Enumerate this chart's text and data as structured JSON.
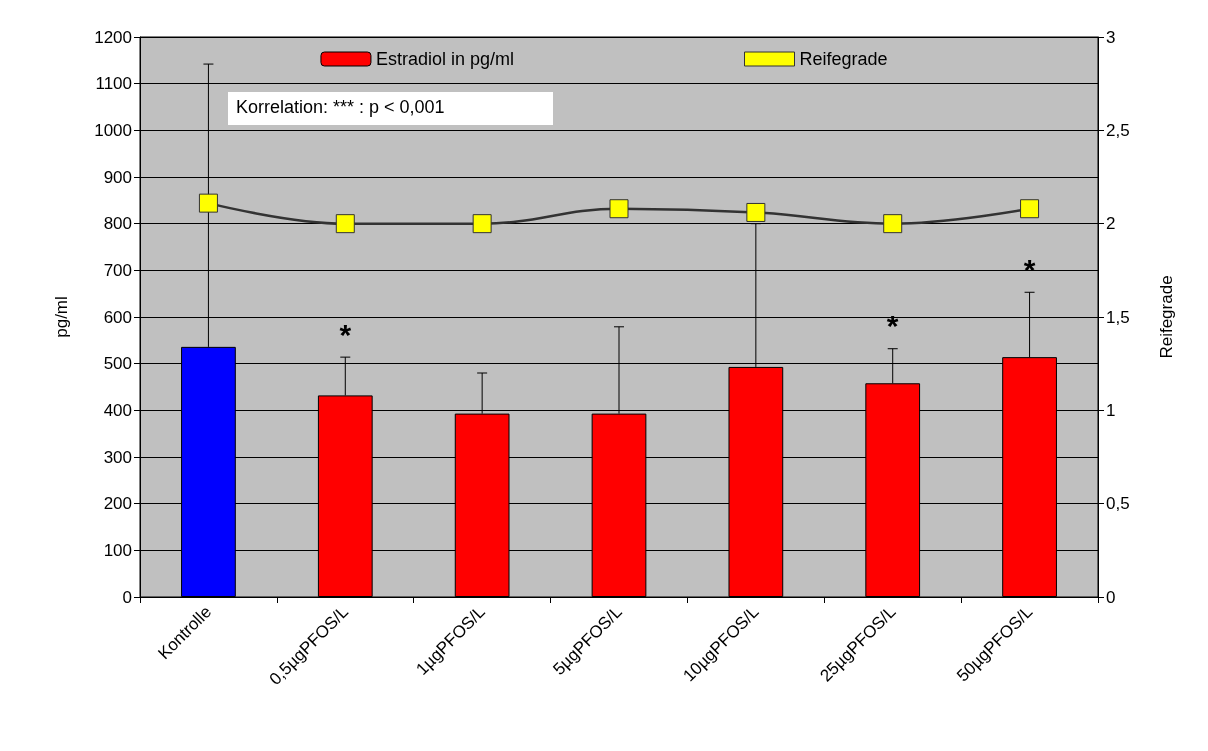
{
  "chart_data": {
    "type": "bar",
    "categories": [
      "Kontrolle",
      "0,5µgPFOS/L",
      "1µgPFOS/L",
      "5µgPFOS/L",
      "10µgPFOS/L",
      "25µgPFOS/L",
      "50µgPFOS/L"
    ],
    "series": [
      {
        "name": "Estradiol in pg/ml",
        "color": "#ff0000",
        "colors": [
          "#0000ff",
          "#ff0000",
          "#ff0000",
          "#ff0000",
          "#ff0000",
          "#ff0000",
          "#ff0000"
        ],
        "values": [
          536,
          432,
          393,
          393,
          493,
          458,
          514
        ],
        "errors": [
          [
            536,
            1142
          ],
          [
            432,
            514
          ],
          [
            393,
            480
          ],
          [
            393,
            579
          ],
          [
            493,
            800
          ],
          [
            458,
            532
          ],
          [
            514,
            653
          ]
        ]
      },
      {
        "name": "Reifegrade",
        "type": "line",
        "axis": "y2",
        "color": "#ffff00",
        "marker": "square",
        "values": [
          2.11,
          2.0,
          2.0,
          2.08,
          2.06,
          2.0,
          2.08
        ]
      }
    ],
    "ylabel": "pg/ml",
    "y2label": "Reifegrade",
    "ylim": [
      0,
      1200
    ],
    "yticks": [
      0,
      100,
      200,
      300,
      400,
      500,
      600,
      700,
      800,
      900,
      1000,
      1100,
      1200
    ],
    "y2lim": [
      0,
      3
    ],
    "y2ticks": [
      0,
      {
        "value": 0.5,
        "label": "0,5"
      },
      1,
      {
        "value": 1.5,
        "label": "1,5"
      },
      2,
      {
        "value": 2.5,
        "label": "2,5"
      },
      3
    ],
    "grid": "y",
    "legend": "top",
    "annotations": [
      "Korrelation: *** : p < 0,001",
      {
        "text": "*",
        "x": "0,5µgPFOS/L",
        "y": 514
      },
      {
        "text": "*",
        "x": "25µgPFOS/L",
        "y": 532
      },
      {
        "text": "*",
        "x": "50µgPFOS/L",
        "y": 653
      }
    ]
  }
}
